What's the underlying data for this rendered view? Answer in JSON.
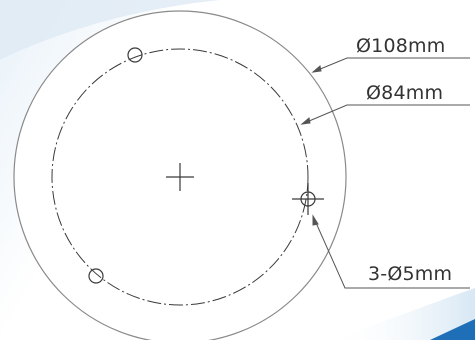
{
  "drawing": {
    "outer_diameter_label": "Ø108mm",
    "bolt_circle_label": "Ø84mm",
    "holes_label": "3-Ø5mm"
  },
  "colors": {
    "background": "#ffffff",
    "background_tint": "#dcebf6",
    "accent_edge": "#1e6fb8",
    "line": "#3a3a3a",
    "text": "#333333"
  }
}
